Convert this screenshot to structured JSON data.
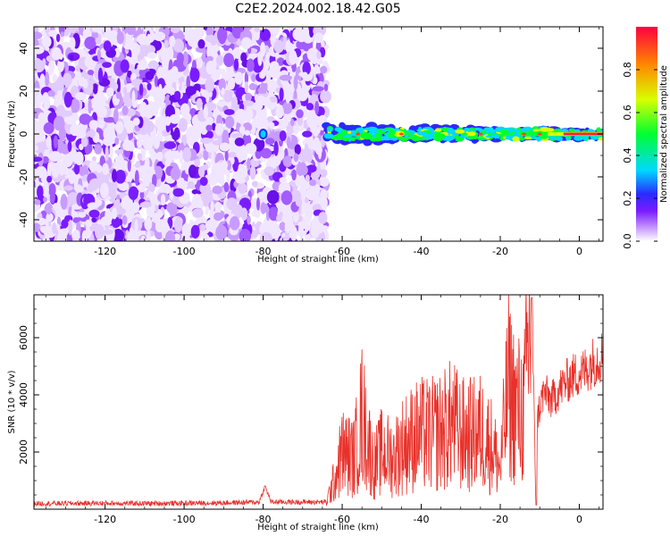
{
  "page_title": "C2E2.2024.002.18.42.G05",
  "chart_data": [
    {
      "type": "heatmap",
      "xlabel": "Height of straight line (km)",
      "ylabel": "Frequency (Hz)",
      "xlim": [
        -138,
        6
      ],
      "ylim": [
        -50,
        50
      ],
      "xticks": [
        -120,
        -100,
        -80,
        -60,
        -40,
        -20,
        0
      ],
      "yticks": [
        -40,
        -20,
        0,
        20,
        40
      ],
      "colorbar": {
        "label": "Normalized spectral amplitude",
        "range": [
          0,
          1
        ],
        "ticks": [
          0.0,
          0.2,
          0.4,
          0.6,
          0.8
        ],
        "colormap": [
          "#ffffff",
          "#c89cff",
          "#7a1cff",
          "#2a2aff",
          "#00d8ff",
          "#00ff30",
          "#d8ff00",
          "#ff8a00",
          "#ff0040"
        ]
      },
      "regions": [
        {
          "x_range": [
            -138,
            -64
          ],
          "freq_range": [
            -50,
            50
          ],
          "level": "noise 0.0-0.3"
        },
        {
          "x_range": [
            -81,
            -79
          ],
          "freq_range": [
            -3,
            3
          ],
          "level": "~0.3"
        },
        {
          "x_range": [
            -64,
            6
          ],
          "freq_range": [
            -5,
            5
          ],
          "level": "signal 0.3-1.0, peak near 0 km"
        }
      ]
    },
    {
      "type": "line",
      "xlabel": "Height of straight line (km)",
      "ylabel": "SNR (10 * v/v)",
      "xlim": [
        -138,
        6
      ],
      "ylim": [
        0,
        7500
      ],
      "xticks": [
        -120,
        -100,
        -80,
        -60,
        -40,
        -20,
        0
      ],
      "yticks": [
        2000,
        4000,
        6000
      ],
      "color": "#e8312a",
      "x": [
        -138,
        -130,
        -120,
        -110,
        -100,
        -90,
        -81,
        -79.5,
        -78,
        -70,
        -64,
        -62,
        -60,
        -57,
        -55,
        -52,
        -50,
        -47,
        -45,
        -42,
        -40,
        -37,
        -35,
        -32,
        -30,
        -27,
        -25,
        -22,
        -20,
        -18,
        -16,
        -14,
        -12,
        -11,
        -10.5,
        -9,
        -7,
        -5,
        -3,
        -1,
        1,
        3,
        5,
        6
      ],
      "y": [
        200,
        200,
        210,
        200,
        210,
        220,
        250,
        800,
        250,
        250,
        250,
        1000,
        2000,
        1800,
        3300,
        1500,
        2000,
        1800,
        2200,
        2500,
        2600,
        2600,
        2700,
        3000,
        2600,
        2600,
        2700,
        2200,
        1400,
        4300,
        3500,
        3400,
        7400,
        200,
        3300,
        4100,
        3800,
        4200,
        4500,
        4700,
        4800,
        5100,
        5300,
        5400
      ]
    }
  ]
}
